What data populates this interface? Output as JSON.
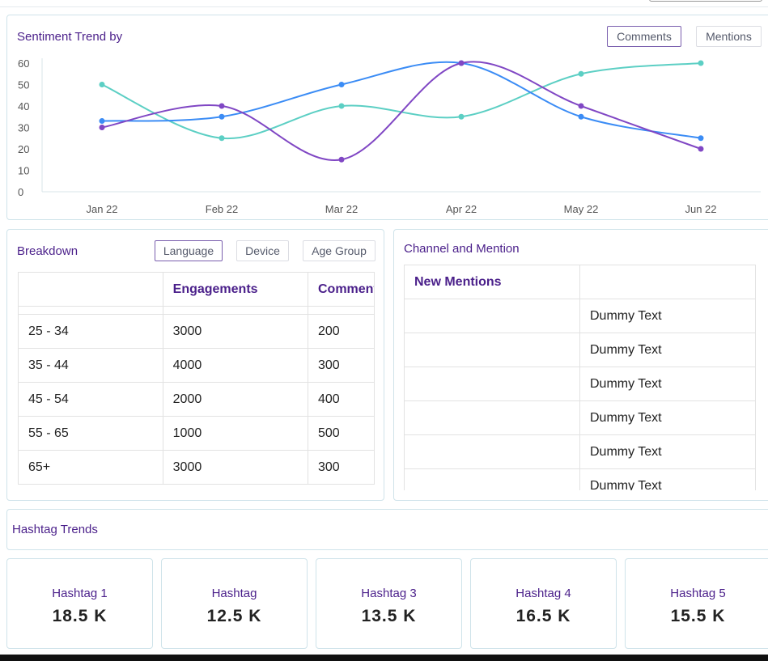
{
  "sentiment": {
    "title": "Sentiment Trend by",
    "buttons": [
      "Comments",
      "Mentions"
    ],
    "active": "Comments"
  },
  "chart_data": {
    "type": "line",
    "categories": [
      "Jan 22",
      "Feb 22",
      "Mar 22",
      "Apr 22",
      "May 22",
      "Jun 22"
    ],
    "ylim": [
      0,
      60
    ],
    "yticks": [
      0,
      10,
      20,
      30,
      40,
      50,
      60
    ],
    "grid": false,
    "series": [
      {
        "color": "#5ccfc4",
        "values": [
          50,
          25,
          40,
          35,
          55,
          60
        ]
      },
      {
        "color": "#3b8cf5",
        "values": [
          33,
          35,
          50,
          60,
          35,
          25
        ]
      },
      {
        "color": "#8047c4",
        "values": [
          30,
          40,
          15,
          60,
          40,
          20
        ]
      }
    ]
  },
  "breakdown": {
    "title": "Breakdown",
    "buttons": [
      "Language",
      "Device",
      "Age Group"
    ],
    "active": "Language",
    "headers": [
      "",
      "Engagements",
      "Comments"
    ],
    "rows": [
      [
        "25 - 34",
        "3000",
        "200"
      ],
      [
        "35 - 44",
        "4000",
        "300"
      ],
      [
        "45 - 54",
        "2000",
        "400"
      ],
      [
        "55 - 65",
        "1000",
        "500"
      ],
      [
        "65+",
        "3000",
        "300"
      ]
    ]
  },
  "channel": {
    "title": "Channel and Mention",
    "headers": [
      "New Mentions",
      ""
    ],
    "rows": [
      [
        "",
        "Dummy Text"
      ],
      [
        "",
        "Dummy Text"
      ],
      [
        "",
        "Dummy Text"
      ],
      [
        "",
        "Dummy Text"
      ],
      [
        "",
        "Dummy Text"
      ],
      [
        "",
        "Dummy Text"
      ]
    ]
  },
  "hashtags": {
    "title": "Hashtag Trends",
    "items": [
      {
        "name": "Hashtag 1",
        "value": "18.5 K"
      },
      {
        "name": "Hashtag",
        "value": "12.5 K"
      },
      {
        "name": "Hashtag 3",
        "value": "13.5 K"
      },
      {
        "name": "Hashtag 4",
        "value": "16.5 K"
      },
      {
        "name": "Hashtag 5",
        "value": "15.5 K"
      }
    ]
  },
  "colors": {
    "accent": "#4a1f8a",
    "border": "#cfe3ea"
  }
}
